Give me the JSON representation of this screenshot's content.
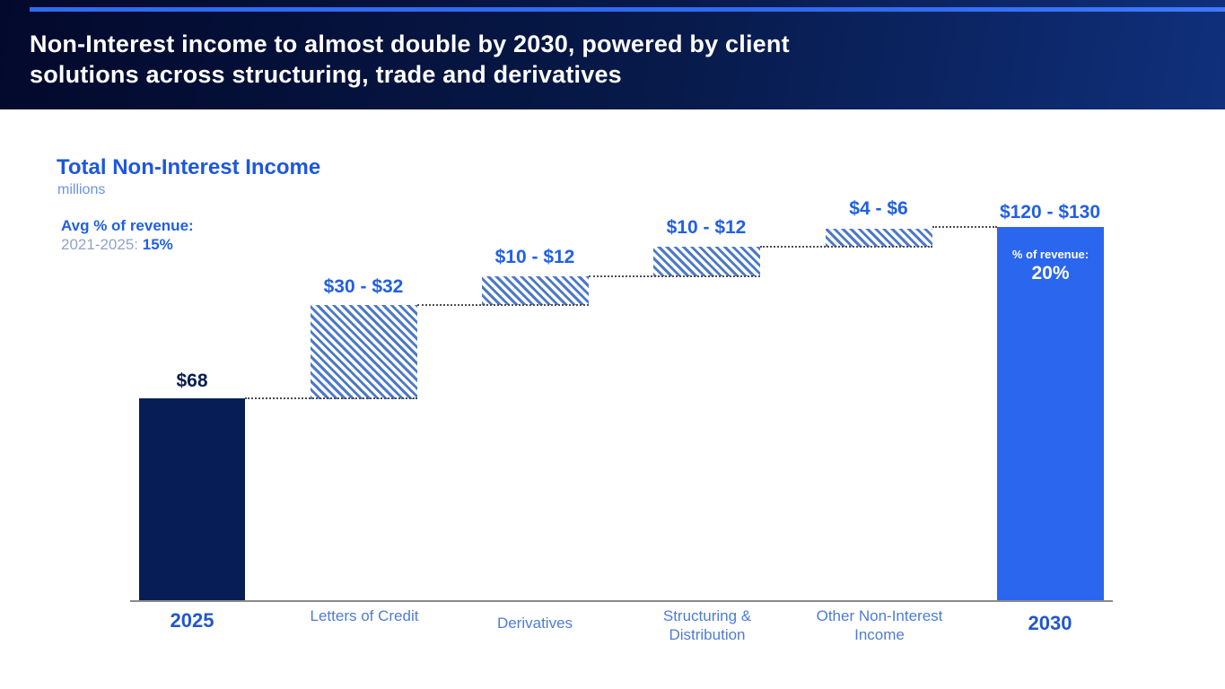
{
  "header": {
    "title": "Non-Interest income to almost double by 2030, powered by client solutions across structuring, trade and derivatives"
  },
  "chart": {
    "title": "Total Non-Interest Income",
    "unit": "millions",
    "annotation": {
      "label": "Avg % of revenue:",
      "period": "2021-2025:",
      "value": "15%"
    }
  },
  "chart_data": {
    "type": "bar",
    "subtype": "waterfall",
    "title": "Total Non-Interest Income",
    "unit": "millions",
    "ylim": [
      0,
      130
    ],
    "grid": false,
    "legend": false,
    "categories": [
      "2025",
      "Letters of Credit",
      "Derivatives",
      "Structuring & Distribution",
      "Other Non-Interest Income",
      "2030"
    ],
    "bars": [
      {
        "category": "2025",
        "value_label": "$68",
        "kind": "total",
        "start": 0,
        "end": 68
      },
      {
        "category": "Letters of Credit",
        "value_label": "$30 - $32",
        "kind": "increase",
        "start": 68,
        "end": 99
      },
      {
        "category": "Derivatives",
        "value_label": "$10 - $12",
        "kind": "increase",
        "start": 99,
        "end": 110
      },
      {
        "category": "Structuring & Distribution",
        "value_label": "$10 - $12",
        "kind": "increase",
        "start": 110,
        "end": 121
      },
      {
        "category": "Other Non-Interest Income",
        "value_label": "$4 - $6",
        "kind": "increase",
        "start": 121,
        "end": 126
      },
      {
        "category": "2030",
        "value_label": "$120 - $130",
        "kind": "total",
        "start": 0,
        "end": 125,
        "inner_label": "% of revenue:",
        "inner_value": "20%"
      }
    ],
    "colors": {
      "start_bar": "#071d55",
      "end_bar": "#2b66ee",
      "hatch_stripe": "#4d79c8",
      "accent_text": "#2160e4",
      "header_bg": "#06123f",
      "accent_line": "#2e6bf0"
    }
  }
}
